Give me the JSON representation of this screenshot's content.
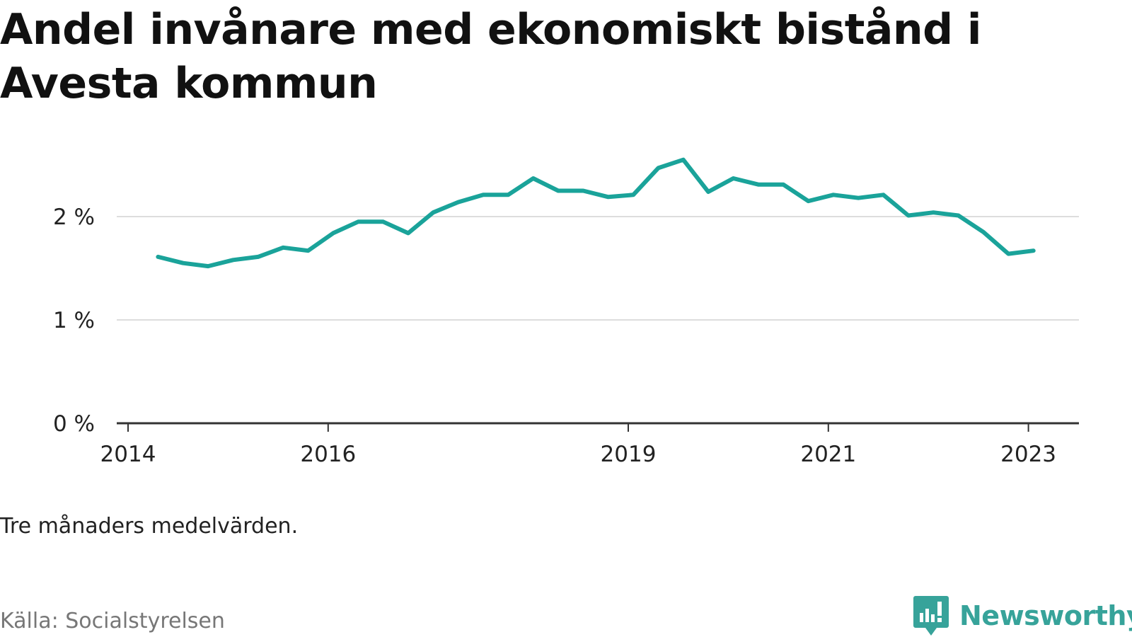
{
  "header": {
    "title": "Andel invånare med ekonomiskt bistånd i Avesta kommun"
  },
  "footer": {
    "note": "Tre månaders medelvärden.",
    "source": "Källa: Socialstyrelsen",
    "brand": "Newsworthy"
  },
  "colors": {
    "line": "#1aa39a",
    "brand": "#37a39a",
    "grid": "#dddddd",
    "axis": "#333333"
  },
  "chart_data": {
    "type": "line",
    "title": "Andel invånare med ekonomiskt bistånd i Avesta kommun",
    "xlabel": "",
    "ylabel": "",
    "ylim": [
      0,
      2.5
    ],
    "grid": true,
    "y_ticks": [
      0,
      1,
      2
    ],
    "y_tick_labels": [
      "0 %",
      "1 %",
      "2 %"
    ],
    "x_ticks": [
      2014,
      2016,
      2019,
      2021,
      2023
    ],
    "x_tick_labels": [
      "2014",
      "2016",
      "2019",
      "2021",
      "2023"
    ],
    "series": [
      {
        "x": [
          2014.3,
          2014.55,
          2014.8,
          2015.05,
          2015.3,
          2015.55,
          2015.8,
          2016.05,
          2016.3,
          2016.55,
          2016.8,
          2017.05,
          2017.3,
          2017.55,
          2017.8,
          2018.05,
          2018.3,
          2018.55,
          2018.8,
          2019.05,
          2019.3,
          2019.55,
          2019.8,
          2020.05,
          2020.3,
          2020.55,
          2020.8,
          2021.05,
          2021.3,
          2021.55,
          2021.8,
          2022.05,
          2022.3,
          2022.55,
          2022.8,
          2023.05
        ],
        "values": [
          1.61,
          1.55,
          1.52,
          1.58,
          1.61,
          1.7,
          1.67,
          1.84,
          1.95,
          1.95,
          1.84,
          2.04,
          2.14,
          2.21,
          2.21,
          2.37,
          2.25,
          2.25,
          2.19,
          2.21,
          2.47,
          2.55,
          2.24,
          2.37,
          2.31,
          2.31,
          2.15,
          2.21,
          2.18,
          2.21,
          2.01,
          2.04,
          2.01,
          1.85,
          1.64,
          1.67
        ]
      }
    ]
  }
}
